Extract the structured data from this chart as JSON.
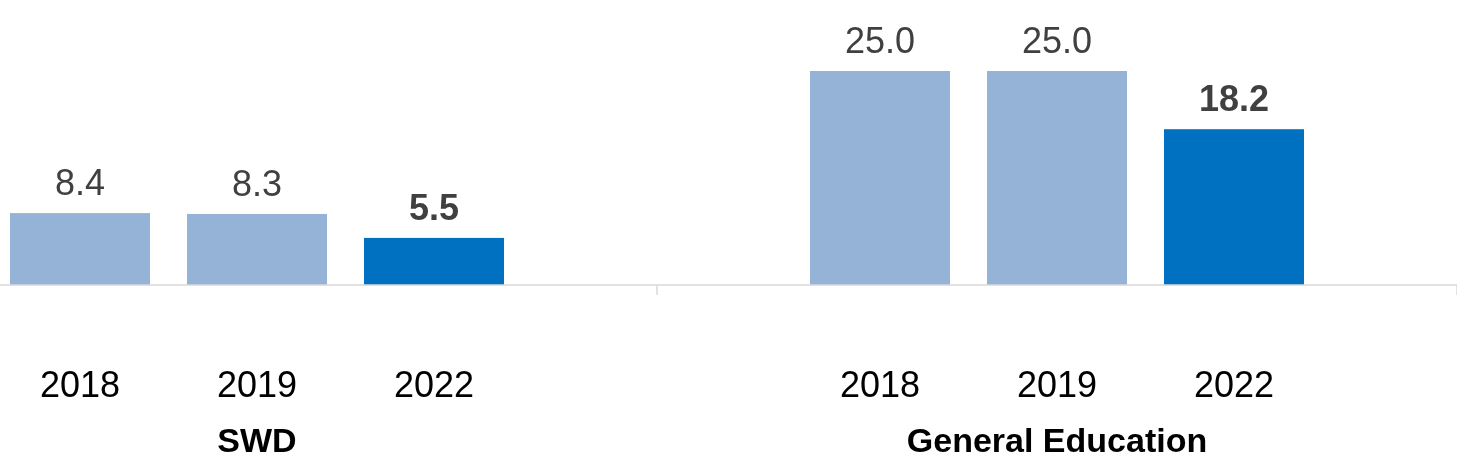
{
  "chart_data": {
    "type": "bar",
    "categories": [
      "SWD",
      "General Education"
    ],
    "series": [
      {
        "name": "2018",
        "color": "#95b3d7",
        "values": [
          8.4,
          25.0
        ],
        "value_labels": [
          "8.4",
          "25.0"
        ]
      },
      {
        "name": "2019",
        "color": "#95b3d7",
        "values": [
          8.3,
          25.0
        ],
        "value_labels": [
          "8.3",
          "25.0"
        ]
      },
      {
        "name": "2022",
        "color": "#0070c0",
        "values": [
          5.5,
          18.2
        ],
        "value_labels": [
          "5.5",
          "18.2"
        ]
      }
    ]
  }
}
